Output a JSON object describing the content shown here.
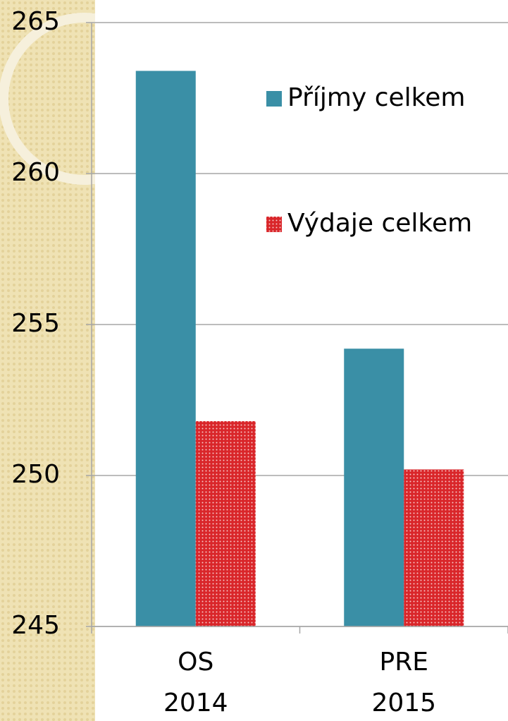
{
  "chart_data": {
    "type": "bar",
    "categories": [
      "OS 2014",
      "PRE 2015"
    ],
    "series": [
      {
        "name": "Příjmy celkem",
        "color": "#3a8fa6",
        "values": [
          263.4,
          254.2
        ]
      },
      {
        "name": "Výdaje celkem",
        "color": "#d9262a",
        "values": [
          251.8,
          250.2
        ]
      }
    ],
    "ylim": [
      245,
      265
    ],
    "yticks": [
      245,
      250,
      255,
      260,
      265
    ],
    "grid": true,
    "legend": "upper right"
  }
}
